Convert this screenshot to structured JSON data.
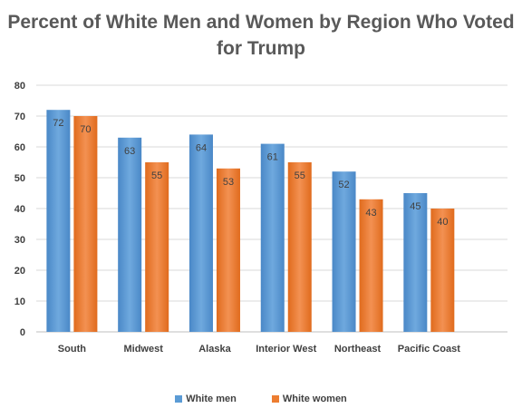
{
  "chart_data": {
    "type": "bar",
    "title_lines": [
      "Percent of White Men and Women by Region Who Voted",
      "for Trump"
    ],
    "categories": [
      "South",
      "Midwest",
      "Alaska",
      "Interior West",
      "Northeast",
      "Pacific Coast"
    ],
    "series": [
      {
        "name": "White men",
        "values": [
          72,
          63,
          64,
          61,
          52,
          45
        ],
        "color": "#5b9bd5"
      },
      {
        "name": "White women",
        "values": [
          70,
          55,
          53,
          55,
          43,
          40
        ],
        "color": "#ed7d31"
      }
    ],
    "yticks": [
      0,
      10,
      20,
      30,
      40,
      50,
      60,
      70,
      80
    ],
    "ylim": [
      0,
      80
    ],
    "grid": true,
    "legend": "bottom"
  }
}
